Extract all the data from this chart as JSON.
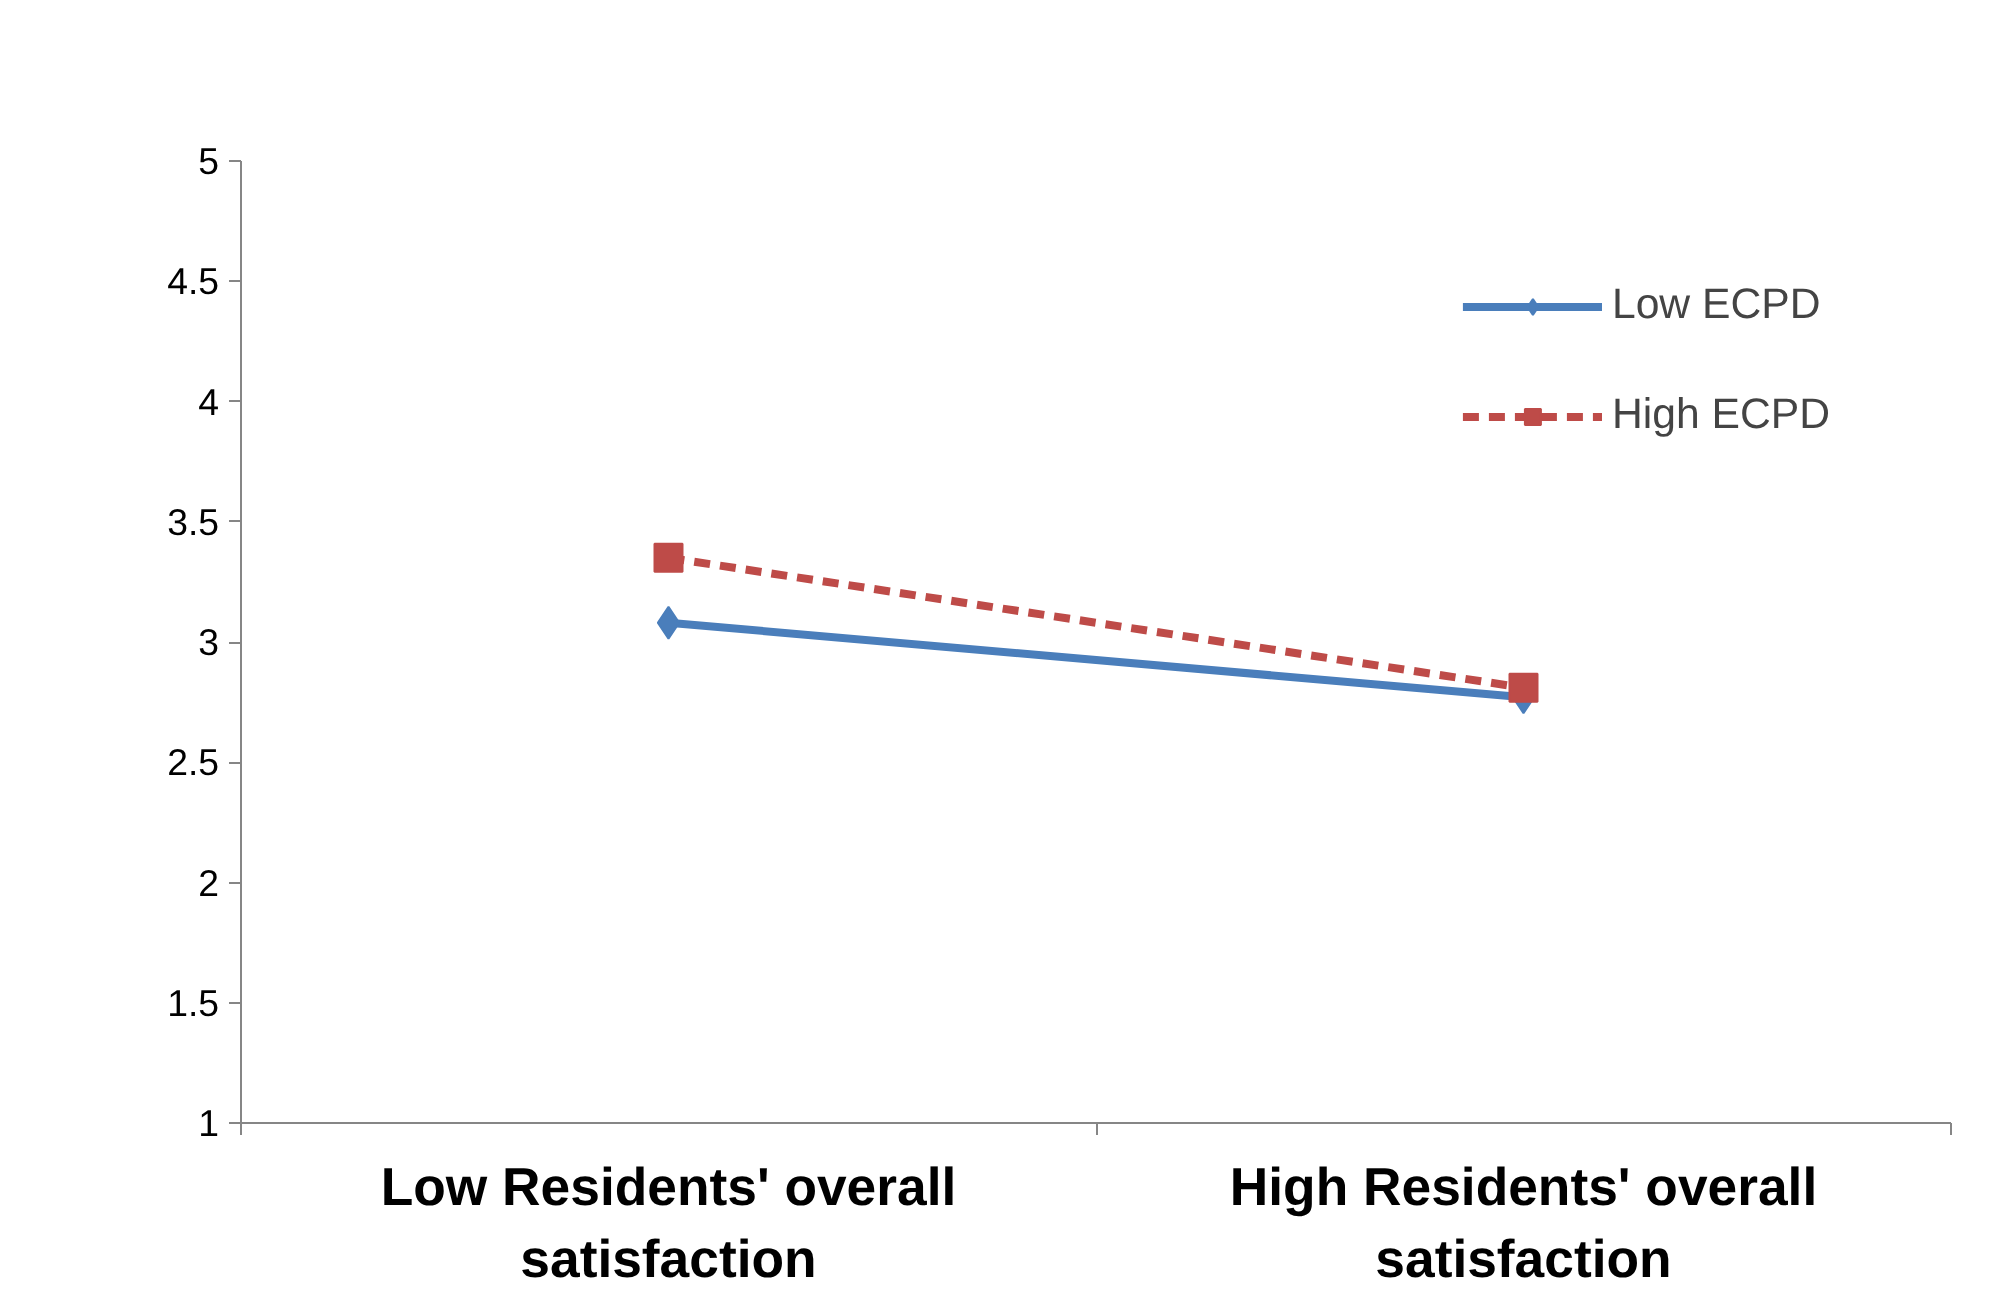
{
  "chart_data": {
    "type": "line",
    "categories": [
      "Low Residents' overall satisfaction",
      "High Residents' overall satisfaction"
    ],
    "series": [
      {
        "name": "Low ECPD",
        "color": "#4a7ebb",
        "values": [
          3.08,
          2.77
        ],
        "marker": "diamond",
        "line_style": "solid"
      },
      {
        "name": "High ECPD",
        "color": "#be4b48",
        "values": [
          3.35,
          2.81
        ],
        "marker": "square",
        "line_style": "dashed"
      }
    ],
    "ylim": [
      1,
      5
    ],
    "yticks": [
      1,
      1.5,
      2,
      2.5,
      3,
      3.5,
      4,
      4.5,
      5
    ],
    "grid": false,
    "legend": "top right"
  }
}
